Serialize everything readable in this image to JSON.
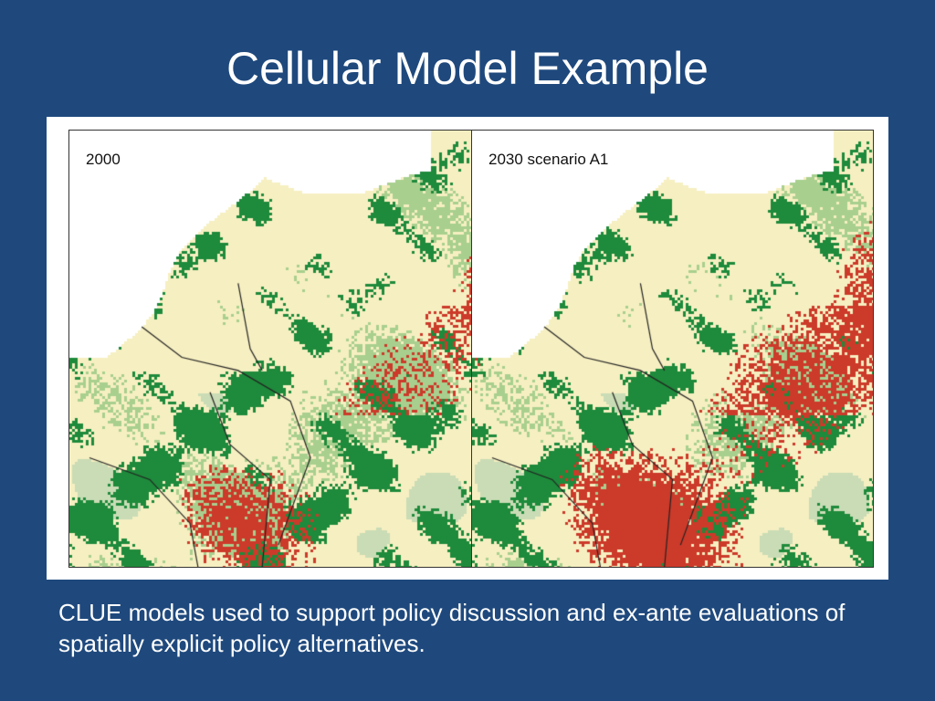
{
  "slide": {
    "title": "Cellular Model Example",
    "caption": "CLUE models used to support policy discussion and ex-ante evaluations of spatially explicit policy alternatives."
  },
  "maps": [
    {
      "label": "2000",
      "urban_intensity": 0.35
    },
    {
      "label": "2030 scenario A1",
      "urban_intensity": 0.75
    }
  ],
  "colors": {
    "background": "#1f497d",
    "water": "#ffffff",
    "cropland": "#f6efc1",
    "grassland": "#a8cf8e",
    "forest": "#1e8a3b",
    "urban": "#cc3a2a",
    "nature": "#c9dcb5",
    "border": "#222222"
  }
}
